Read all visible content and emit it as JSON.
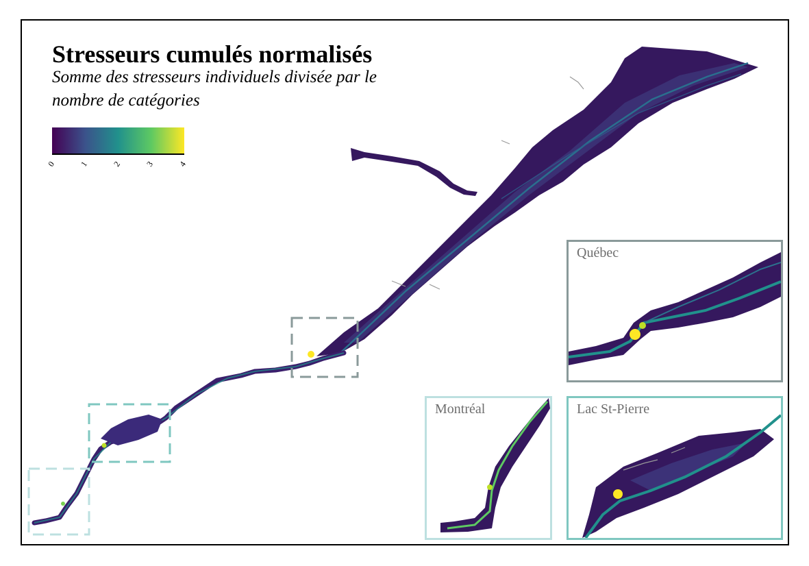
{
  "map": {
    "title": "Stresseurs cumulés normalisés",
    "subtitle": "Somme des stresseurs individuels divisée par le nombre de catégories",
    "legend": {
      "ticks": [
        "0",
        "1",
        "2",
        "3",
        "4"
      ],
      "colors": [
        "#440154",
        "#3b528b",
        "#21918c",
        "#5ec962",
        "#fde725"
      ]
    },
    "insets": {
      "quebec": {
        "label": "Québec",
        "frame_color": "#8a9a9a"
      },
      "montreal": {
        "label": "Montréal",
        "frame_color": "#bde0e0"
      },
      "lac_st_pierre": {
        "label": "Lac St-Pierre",
        "frame_color": "#7fc7c0"
      }
    }
  }
}
